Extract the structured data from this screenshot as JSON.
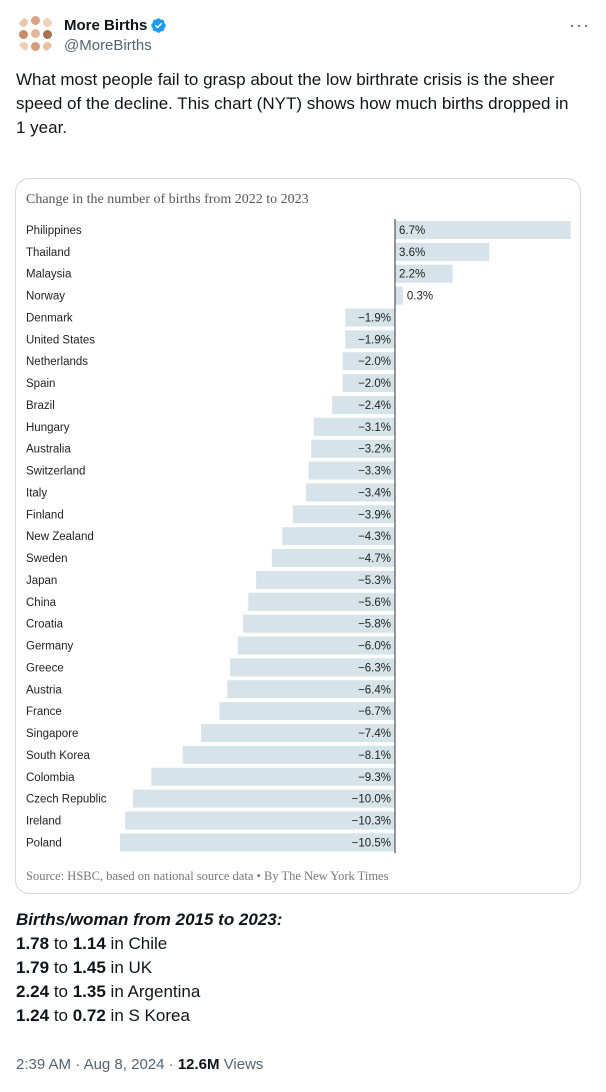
{
  "account": {
    "name": "More Births",
    "handle": "@MoreBirths",
    "verified_color": "#1d9bf0"
  },
  "tweet": {
    "text": "What most people fail to grasp about the low birthrate crisis is the sheer speed of the decline. This chart (NYT) shows how much births dropped in 1 year."
  },
  "chart_data": {
    "type": "bar",
    "orientation": "horizontal",
    "title": "Change in the number of births from 2022 to 2023",
    "categories": [
      "Philippines",
      "Thailand",
      "Malaysia",
      "Norway",
      "Denmark",
      "United States",
      "Netherlands",
      "Spain",
      "Brazil",
      "Hungary",
      "Australia",
      "Switzerland",
      "Italy",
      "Finland",
      "New Zealand",
      "Sweden",
      "Japan",
      "China",
      "Croatia",
      "Germany",
      "Greece",
      "Austria",
      "France",
      "Singapore",
      "South Korea",
      "Colombia",
      "Czech Republic",
      "Ireland",
      "Poland"
    ],
    "values": [
      6.7,
      3.6,
      2.2,
      0.3,
      -1.9,
      -1.9,
      -2.0,
      -2.0,
      -2.4,
      -3.1,
      -3.2,
      -3.3,
      -3.4,
      -3.9,
      -4.3,
      -4.7,
      -5.3,
      -5.6,
      -5.8,
      -6.0,
      -6.3,
      -6.4,
      -6.7,
      -7.4,
      -8.1,
      -9.3,
      -10.0,
      -10.3,
      -10.5
    ],
    "labels": [
      "6.7%",
      "3.6%",
      "2.2%",
      "0.3%",
      "−1.9%",
      "−1.9%",
      "−2.0%",
      "−2.0%",
      "−2.4%",
      "−3.1%",
      "−3.2%",
      "−3.3%",
      "−3.4%",
      "−3.9%",
      "−4.3%",
      "−4.7%",
      "−5.3%",
      "−5.6%",
      "−5.8%",
      "−6.0%",
      "−6.3%",
      "−6.4%",
      "−6.7%",
      "−7.4%",
      "−8.1%",
      "−9.3%",
      "−10.0%",
      "−10.3%",
      "−10.5%"
    ],
    "bar_color": "#d6e3e8",
    "axis_color": "#333333",
    "source": "Source: HSBC, based on national source data • By The New York Times"
  },
  "stats": {
    "heading": "Births/woman from 2015 to 2023:",
    "rows": [
      {
        "from": "1.78",
        "to": "1.14",
        "place": "Chile"
      },
      {
        "from": "1.79",
        "to": "1.45",
        "place": "UK"
      },
      {
        "from": "2.24",
        "to": "1.35",
        "place": "Argentina"
      },
      {
        "from": "1.24",
        "to": "0.72",
        "place": "S Korea"
      }
    ],
    "connector": "to",
    "prefix_in": "in"
  },
  "footer": {
    "time": "2:39 AM",
    "date": "Aug 8, 2024",
    "views_count": "12.6M",
    "views_label": "Views"
  }
}
